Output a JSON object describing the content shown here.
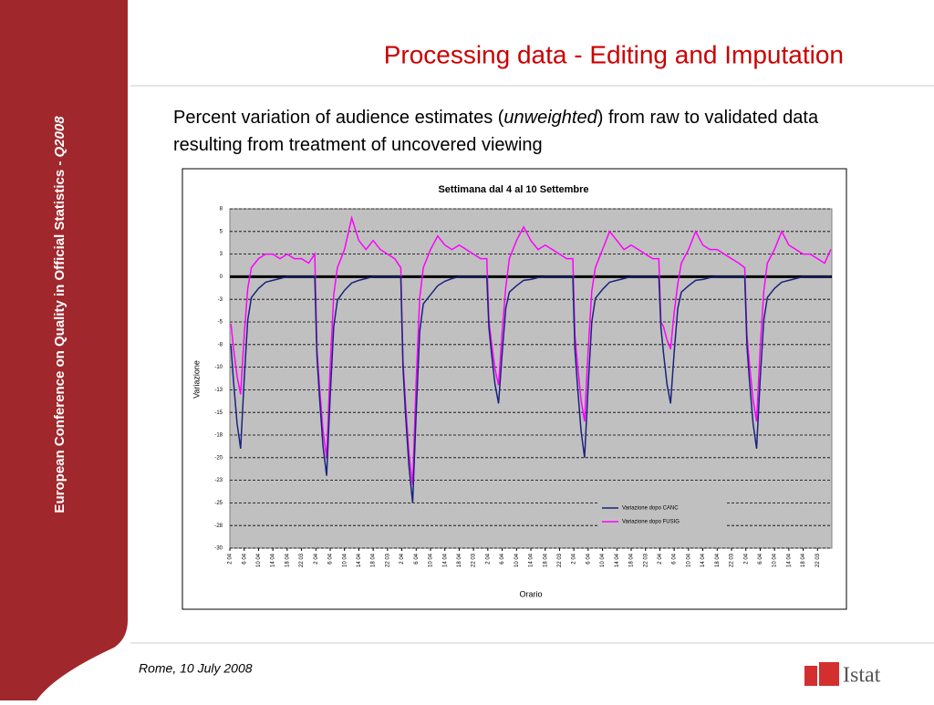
{
  "slide": {
    "title": "Processing data - Editing and Imputation",
    "subtitle_start": "Percent variation of audience estimates (",
    "subtitle_italic": "unweighted",
    "subtitle_end": ") from raw to validated data resulting from treatment of uncovered viewing",
    "side_text": "European Conference on Quality in Official Statistics  - ",
    "side_italic": "Q2008",
    "footer": "Rome, 10 July 2008",
    "logo": "Istat"
  },
  "chart_data": {
    "type": "line",
    "title": "Settimana dal 4 al 10 Settembre",
    "x_label": "Orario",
    "y_label": "Variazione",
    "xlim": [
      0,
      168
    ],
    "ylim": [
      -30,
      7.5
    ],
    "grid": true,
    "xticks": [
      {
        "value": 0,
        "label": "2 04"
      },
      {
        "value": 4,
        "label": "6 04"
      },
      {
        "value": 8,
        "label": "10 04"
      },
      {
        "value": 12,
        "label": "14 04"
      },
      {
        "value": 16,
        "label": "18 04"
      },
      {
        "value": 20,
        "label": "22 03"
      },
      {
        "value": 24,
        "label": "2 04"
      },
      {
        "value": 28,
        "label": "6 04"
      },
      {
        "value": 32,
        "label": "10 04"
      },
      {
        "value": 36,
        "label": "14 04"
      },
      {
        "value": 40,
        "label": "18 04"
      },
      {
        "value": 44,
        "label": "22 03"
      },
      {
        "value": 48,
        "label": "2 04"
      },
      {
        "value": 52,
        "label": "6 04"
      },
      {
        "value": 56,
        "label": "10 04"
      },
      {
        "value": 60,
        "label": "14 04"
      },
      {
        "value": 64,
        "label": "18 04"
      },
      {
        "value": 68,
        "label": "22 03"
      },
      {
        "value": 72,
        "label": "2 04"
      },
      {
        "value": 76,
        "label": "6 04"
      },
      {
        "value": 80,
        "label": "10 04"
      },
      {
        "value": 84,
        "label": "14 04"
      },
      {
        "value": 88,
        "label": "18 04"
      },
      {
        "value": 92,
        "label": "22 03"
      },
      {
        "value": 96,
        "label": "2 04"
      },
      {
        "value": 100,
        "label": "6 04"
      },
      {
        "value": 104,
        "label": "10 04"
      },
      {
        "value": 108,
        "label": "14 04"
      },
      {
        "value": 112,
        "label": "18 04"
      },
      {
        "value": 116,
        "label": "22 03"
      },
      {
        "value": 120,
        "label": "2 04"
      },
      {
        "value": 124,
        "label": "6 04"
      },
      {
        "value": 128,
        "label": "10 04"
      },
      {
        "value": 132,
        "label": "14 04"
      },
      {
        "value": 136,
        "label": "18 04"
      },
      {
        "value": 140,
        "label": "22 03"
      },
      {
        "value": 144,
        "label": "2 04"
      },
      {
        "value": 148,
        "label": "6 04"
      },
      {
        "value": 152,
        "label": "10 04"
      },
      {
        "value": 156,
        "label": "14 04"
      },
      {
        "value": 160,
        "label": "18 04"
      },
      {
        "value": 164,
        "label": "22 03"
      }
    ],
    "yticks": [
      {
        "value": 7.5,
        "label": "8"
      },
      5,
      {
        "value": 2.5,
        "label": "3"
      },
      0,
      {
        "value": -2.5,
        "label": "-3"
      },
      -5,
      {
        "value": -7.5,
        "label": "-8"
      },
      -10,
      {
        "value": -12.5,
        "label": "-13"
      },
      -15,
      {
        "value": -17.5,
        "label": "-18"
      },
      -20,
      {
        "value": -22.5,
        "label": "-23"
      },
      -25,
      {
        "value": -27.5,
        "label": "-28"
      },
      -30
    ],
    "x": [
      0.3,
      1,
      2,
      3,
      4,
      5,
      6,
      8,
      10,
      12,
      14,
      16,
      18,
      20,
      22,
      23.7,
      24.3,
      25,
      26,
      27,
      28,
      29,
      30,
      32,
      34,
      36,
      38,
      40,
      42,
      44,
      46,
      47.7,
      48.3,
      49,
      50,
      51,
      52,
      53,
      54,
      56,
      58,
      60,
      62,
      64,
      66,
      68,
      70,
      71.7,
      72.3,
      73,
      74,
      75,
      76,
      77,
      78,
      80,
      82,
      84,
      86,
      88,
      90,
      92,
      94,
      95.7,
      96.3,
      97,
      98,
      99,
      100,
      101,
      102,
      104,
      106,
      108,
      110,
      112,
      114,
      116,
      118,
      119.7,
      120.3,
      121,
      122,
      123,
      124,
      125,
      126,
      128,
      130,
      132,
      134,
      136,
      138,
      140,
      142,
      143.7,
      144.3,
      145,
      146,
      147,
      148,
      149,
      150,
      152,
      154,
      156,
      158,
      160,
      162,
      164,
      166,
      167.7
    ],
    "series": [
      {
        "name": "Variazione dopo CANC",
        "color": "#1a237e",
        "values": [
          -7.6,
          -11.4,
          -16.2,
          -19,
          -11.4,
          -4.8,
          -2.3,
          -1.3,
          -0.6,
          -0.4,
          -0.2,
          0,
          0,
          0,
          0,
          0,
          -8.8,
          -13.2,
          -18.7,
          -22,
          -13.2,
          -5.5,
          -2.6,
          -1.5,
          -0.7,
          -0.4,
          -0.2,
          0,
          0,
          0,
          0,
          0,
          -10,
          -15,
          -21,
          -25,
          -15,
          -6,
          -3,
          -2,
          -1,
          -0.5,
          -0.2,
          0,
          0,
          0,
          0,
          0,
          -5.6,
          -8.4,
          -11.9,
          -14,
          -8.4,
          -3.5,
          -1.7,
          -1,
          -0.4,
          -0.3,
          -0.1,
          0,
          0,
          0,
          0,
          0,
          -8,
          -12,
          -17,
          -20,
          -12,
          -5,
          -2.4,
          -1.4,
          -0.6,
          -0.4,
          -0.2,
          0,
          0,
          0,
          0,
          0,
          -5.6,
          -8.4,
          -11.9,
          -14,
          -8.4,
          -3.5,
          -1.7,
          -1,
          -0.4,
          -0.3,
          -0.1,
          0,
          0,
          0,
          0,
          0,
          -7.6,
          -11.4,
          -16.2,
          -19,
          -11.4,
          -4.8,
          -2.3,
          -1.3,
          -0.6,
          -0.4,
          -0.2,
          0,
          0,
          0,
          0,
          0
        ]
      },
      {
        "name": "Variazione dopo FUSIG",
        "color": "#ff00ff",
        "values": [
          -5.2,
          -7.8,
          -11,
          -13,
          -6.5,
          -1.3,
          1,
          2,
          2.5,
          2.5,
          2,
          2.5,
          2,
          2,
          1.5,
          2.5,
          -8,
          -12,
          -17,
          -20,
          -10,
          -2,
          1,
          3,
          6.5,
          4,
          3,
          4,
          3,
          2.5,
          2,
          1,
          -9.2,
          -13.8,
          -19.6,
          -23,
          -11.5,
          -2.3,
          1,
          3,
          4.5,
          3.5,
          3,
          3.5,
          3,
          2.5,
          2,
          2,
          -4.8,
          -7.2,
          -10.2,
          -12,
          -6,
          -1.2,
          2,
          4,
          5.5,
          4,
          3,
          3.5,
          3,
          2.5,
          2,
          2,
          -6.4,
          -9.6,
          -13.6,
          -16,
          -8,
          -1.6,
          1,
          3,
          5,
          4,
          3,
          3.5,
          3,
          2.5,
          2,
          2,
          -5,
          -5.5,
          -7,
          -8,
          -4,
          -0.8,
          1.5,
          3,
          5,
          3.5,
          3,
          3,
          2.5,
          2,
          1.5,
          1,
          -6.4,
          -9.6,
          -13.6,
          -16,
          -8,
          -1.6,
          1.5,
          3,
          5,
          3.5,
          3,
          2.5,
          2.5,
          2,
          1.5,
          3
        ]
      }
    ]
  }
}
